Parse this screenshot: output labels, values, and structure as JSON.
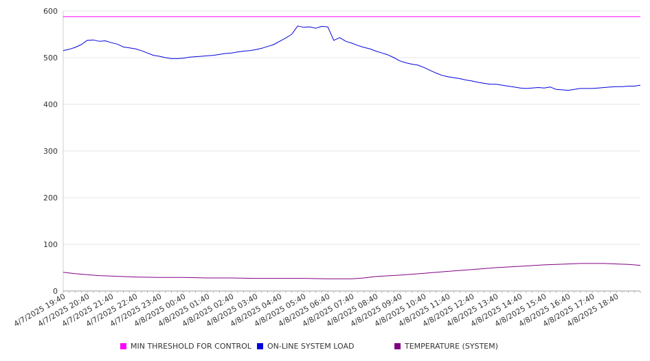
{
  "chart_data": {
    "type": "line",
    "title": "",
    "xlabel": "",
    "ylabel": "",
    "ylim": [
      0,
      600
    ],
    "yticks": [
      "0",
      "100",
      "200",
      "300",
      "400",
      "500",
      "600"
    ],
    "xlim": [
      0,
      24
    ],
    "grid": true,
    "legend_position": "bottom",
    "x_tick_labels": [
      "4/7/2025 19:40",
      "4/7/2025 20:40",
      "4/7/2025 21:40",
      "4/7/2025 22:40",
      "4/7/2025 23:40",
      "4/8/2025 00:40",
      "4/8/2025 01:40",
      "4/8/2025 02:40",
      "4/8/2025 03:40",
      "4/8/2025 04:40",
      "4/8/2025 05:40",
      "4/8/2025 06:40",
      "4/8/2025 07:40",
      "4/8/2025 08:40",
      "4/8/2025 09:40",
      "4/8/2025 10:40",
      "4/8/2025 11:40",
      "4/8/2025 12:40",
      "4/8/2025 13:40",
      "4/8/2025 14:40",
      "4/8/2025 15:40",
      "4/8/2025 16:40",
      "4/8/2025 17:40",
      "4/8/2025 18:40"
    ],
    "series": [
      {
        "name": "MIN THRESHOLD FOR CONTROL",
        "color": "#ff00ff",
        "x": [
          0,
          24
        ],
        "y": [
          588,
          588
        ]
      },
      {
        "name": "ON-LINE SYSTEM LOAD",
        "color": "#0000dd",
        "x": [
          0,
          0.25,
          0.5,
          0.75,
          1.0,
          1.25,
          1.5,
          1.75,
          2.0,
          2.25,
          2.5,
          2.75,
          3.0,
          3.25,
          3.5,
          3.75,
          4.0,
          4.25,
          4.5,
          4.75,
          5.0,
          5.25,
          5.5,
          5.75,
          6.0,
          6.25,
          6.5,
          6.75,
          7.0,
          7.25,
          7.5,
          7.75,
          8.0,
          8.25,
          8.5,
          8.75,
          9.0,
          9.25,
          9.5,
          9.75,
          10.0,
          10.25,
          10.5,
          10.75,
          11.0,
          11.25,
          11.5,
          11.75,
          12.0,
          12.25,
          12.5,
          12.75,
          13.0,
          13.25,
          13.5,
          13.75,
          14.0,
          14.25,
          14.5,
          14.75,
          15.0,
          15.25,
          15.5,
          15.75,
          16.0,
          16.25,
          16.5,
          16.75,
          17.0,
          17.25,
          17.5,
          17.75,
          18.0,
          18.25,
          18.5,
          18.75,
          19.0,
          19.25,
          19.5,
          19.75,
          20.0,
          20.25,
          20.5,
          20.75,
          21.0,
          21.25,
          21.5,
          21.75,
          22.0,
          22.25,
          22.5,
          22.75,
          23.0,
          23.25,
          23.5,
          23.75,
          24.0
        ],
        "y": [
          515,
          518,
          522,
          528,
          537,
          538,
          535,
          536,
          532,
          529,
          523,
          521,
          519,
          515,
          510,
          505,
          503,
          500,
          498,
          498,
          499,
          501,
          502,
          503,
          504,
          505,
          507,
          509,
          510,
          512,
          514,
          515,
          517,
          520,
          524,
          528,
          535,
          542,
          550,
          568,
          565,
          566,
          563,
          567,
          566,
          537,
          543,
          535,
          531,
          526,
          522,
          519,
          514,
          510,
          506,
          500,
          493,
          489,
          486,
          484,
          479,
          473,
          467,
          462,
          459,
          457,
          455,
          452,
          450,
          447,
          445,
          443,
          443,
          441,
          439,
          437,
          435,
          434,
          435,
          436,
          435,
          437,
          432,
          431,
          430,
          432,
          434,
          434,
          434,
          435,
          436,
          437,
          438,
          438,
          439,
          439,
          441
        ]
      },
      {
        "name": "TEMPERATURE (SYSTEM)",
        "color": "#800080",
        "x": [
          0,
          0.5,
          1,
          1.5,
          2,
          3,
          4,
          5,
          6,
          7,
          8,
          9,
          10,
          11,
          12,
          12.5,
          13,
          14,
          15,
          16,
          17,
          18,
          19,
          20,
          21,
          21.5,
          22,
          22.5,
          23,
          23.5,
          24
        ],
        "y": [
          40,
          37,
          35,
          33,
          32,
          30,
          29,
          29,
          28,
          28,
          27,
          27,
          27,
          26,
          26,
          28,
          31,
          34,
          38,
          42,
          46,
          50,
          53,
          56,
          58,
          59,
          59,
          59,
          58,
          57,
          55
        ]
      }
    ]
  }
}
